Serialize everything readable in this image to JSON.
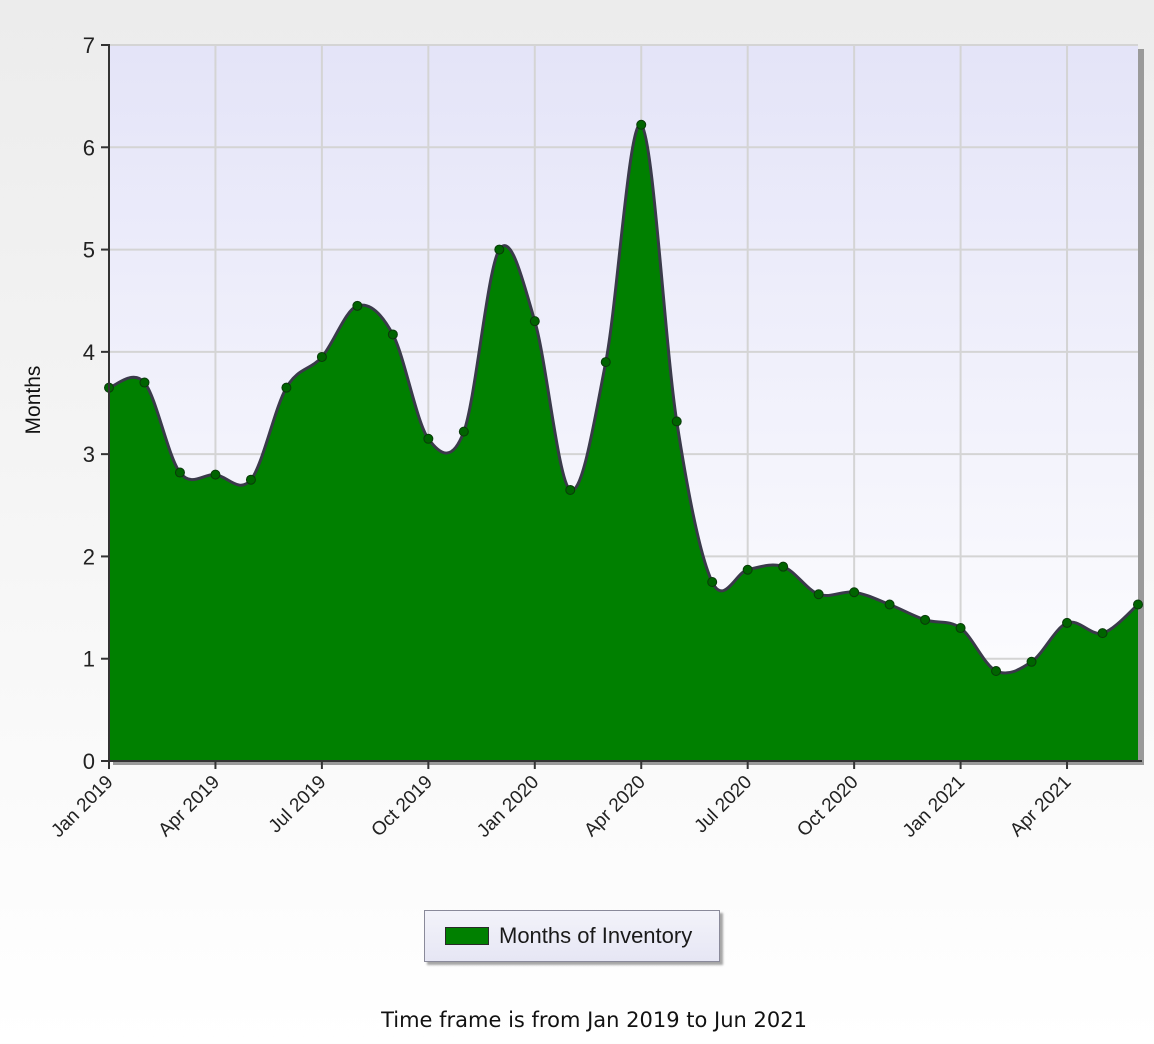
{
  "chart_data": {
    "type": "area",
    "ylabel": "Months",
    "ylim": [
      0,
      7
    ],
    "yticks": [
      0,
      1,
      2,
      3,
      4,
      5,
      6,
      7
    ],
    "grid": true,
    "x_tick_labels": [
      "Jan 2019",
      "Apr 2019",
      "Jul 2019",
      "Oct 2019",
      "Jan 2020",
      "Apr 2020",
      "Jul 2020",
      "Oct 2020",
      "Jan 2021",
      "Apr 2021"
    ],
    "x_tick_months": [
      0,
      3,
      6,
      9,
      12,
      15,
      18,
      21,
      24,
      27
    ],
    "x_range_months": [
      0,
      29
    ],
    "series": [
      {
        "name": "Months of Inventory",
        "color": "#008000",
        "x_months": [
          0,
          1,
          2,
          3,
          4,
          5,
          6,
          7,
          8,
          9,
          10,
          11,
          12,
          13,
          14,
          15,
          16,
          17,
          18,
          19,
          20,
          21,
          22,
          23,
          24,
          25,
          26,
          27,
          28,
          29
        ],
        "values": [
          3.65,
          3.7,
          2.82,
          2.8,
          2.75,
          3.65,
          3.95,
          4.45,
          4.17,
          3.15,
          3.22,
          5.0,
          4.3,
          2.65,
          3.9,
          6.22,
          3.32,
          1.75,
          1.87,
          1.9,
          1.63,
          1.65,
          1.53,
          1.38,
          1.3,
          0.88,
          0.97,
          1.35,
          1.25,
          1.53
        ]
      }
    ],
    "legend": {
      "label": "Months of Inventory",
      "placement": "bottom-center"
    }
  },
  "footer": {
    "note": "Time frame is from Jan 2019 to Jun 2021"
  },
  "colors": {
    "area_fill": "#008000",
    "plot_bg_top": "#e4e4f8",
    "plot_bg_bottom": "#ffffff",
    "gridline": "#d4d4d4"
  }
}
